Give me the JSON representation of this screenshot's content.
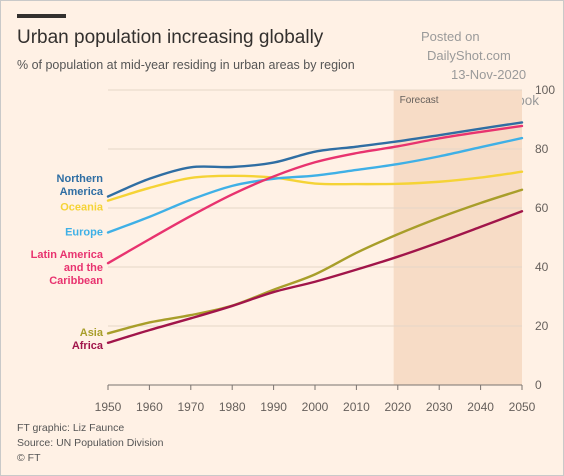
{
  "title": "Urban population increasing globally",
  "subtitle": "% of population at mid-year residing in urban areas by region",
  "watermark": {
    "line1": "Posted on",
    "line2": "DailyShot.com",
    "date": "13-Nov-2020",
    "handle": "@SoberLook"
  },
  "footer": {
    "credit": "FT graphic: Liz Faunce",
    "source": "Source: UN Population Division",
    "logo": "© FT"
  },
  "chart_data": {
    "type": "line",
    "x": [
      1950,
      1960,
      1970,
      1980,
      1990,
      2000,
      2010,
      2020,
      2030,
      2040,
      2050
    ],
    "xlim": [
      1950,
      2050
    ],
    "ylim": [
      0,
      100
    ],
    "yticks": [
      0,
      20,
      40,
      60,
      80,
      100
    ],
    "xticks": [
      1950,
      1960,
      1970,
      1980,
      1990,
      2000,
      2010,
      2020,
      2030,
      2040,
      2050
    ],
    "grid": true,
    "forecast": {
      "label": "Forecast",
      "from": 2019,
      "to": 2050
    },
    "series": [
      {
        "name": "Northern America",
        "label_lines": [
          "Northern",
          "America"
        ],
        "color": "#2f6ea3",
        "label_y": 68,
        "values": [
          63.9,
          69.9,
          73.8,
          73.9,
          75.4,
          79.1,
          80.8,
          82.6,
          84.7,
          86.9,
          89.0
        ]
      },
      {
        "name": "Oceania",
        "label_lines": [
          "Oceania"
        ],
        "color": "#f5d336",
        "label_y": 60.5,
        "values": [
          62.5,
          66.8,
          70.2,
          70.9,
          70.3,
          68.3,
          68.1,
          68.2,
          68.9,
          70.3,
          72.3
        ]
      },
      {
        "name": "Europe",
        "label_lines": [
          "Europe"
        ],
        "color": "#3fb0e6",
        "label_y": 52,
        "values": [
          51.7,
          57.0,
          62.8,
          67.5,
          69.9,
          71.0,
          72.9,
          74.9,
          77.5,
          80.6,
          83.7
        ]
      },
      {
        "name": "Latin America and the Caribbean",
        "label_lines": [
          "Latin America",
          "and the",
          "Caribbean"
        ],
        "color": "#e8336f",
        "label_y": 40,
        "values": [
          41.3,
          49.4,
          57.3,
          64.6,
          70.7,
          75.5,
          78.6,
          80.9,
          83.6,
          85.8,
          87.8
        ]
      },
      {
        "name": "Asia",
        "label_lines": [
          "Asia"
        ],
        "color": "#a89e2a",
        "label_y": 18,
        "values": [
          17.5,
          21.2,
          23.7,
          26.9,
          32.3,
          37.5,
          44.8,
          51.1,
          56.7,
          61.7,
          66.2
        ]
      },
      {
        "name": "Africa",
        "label_lines": [
          "Africa"
        ],
        "color": "#a1154a",
        "label_y": 13.5,
        "values": [
          14.3,
          18.6,
          22.6,
          26.8,
          31.5,
          35.0,
          39.1,
          43.5,
          48.4,
          53.6,
          58.9
        ]
      }
    ]
  }
}
